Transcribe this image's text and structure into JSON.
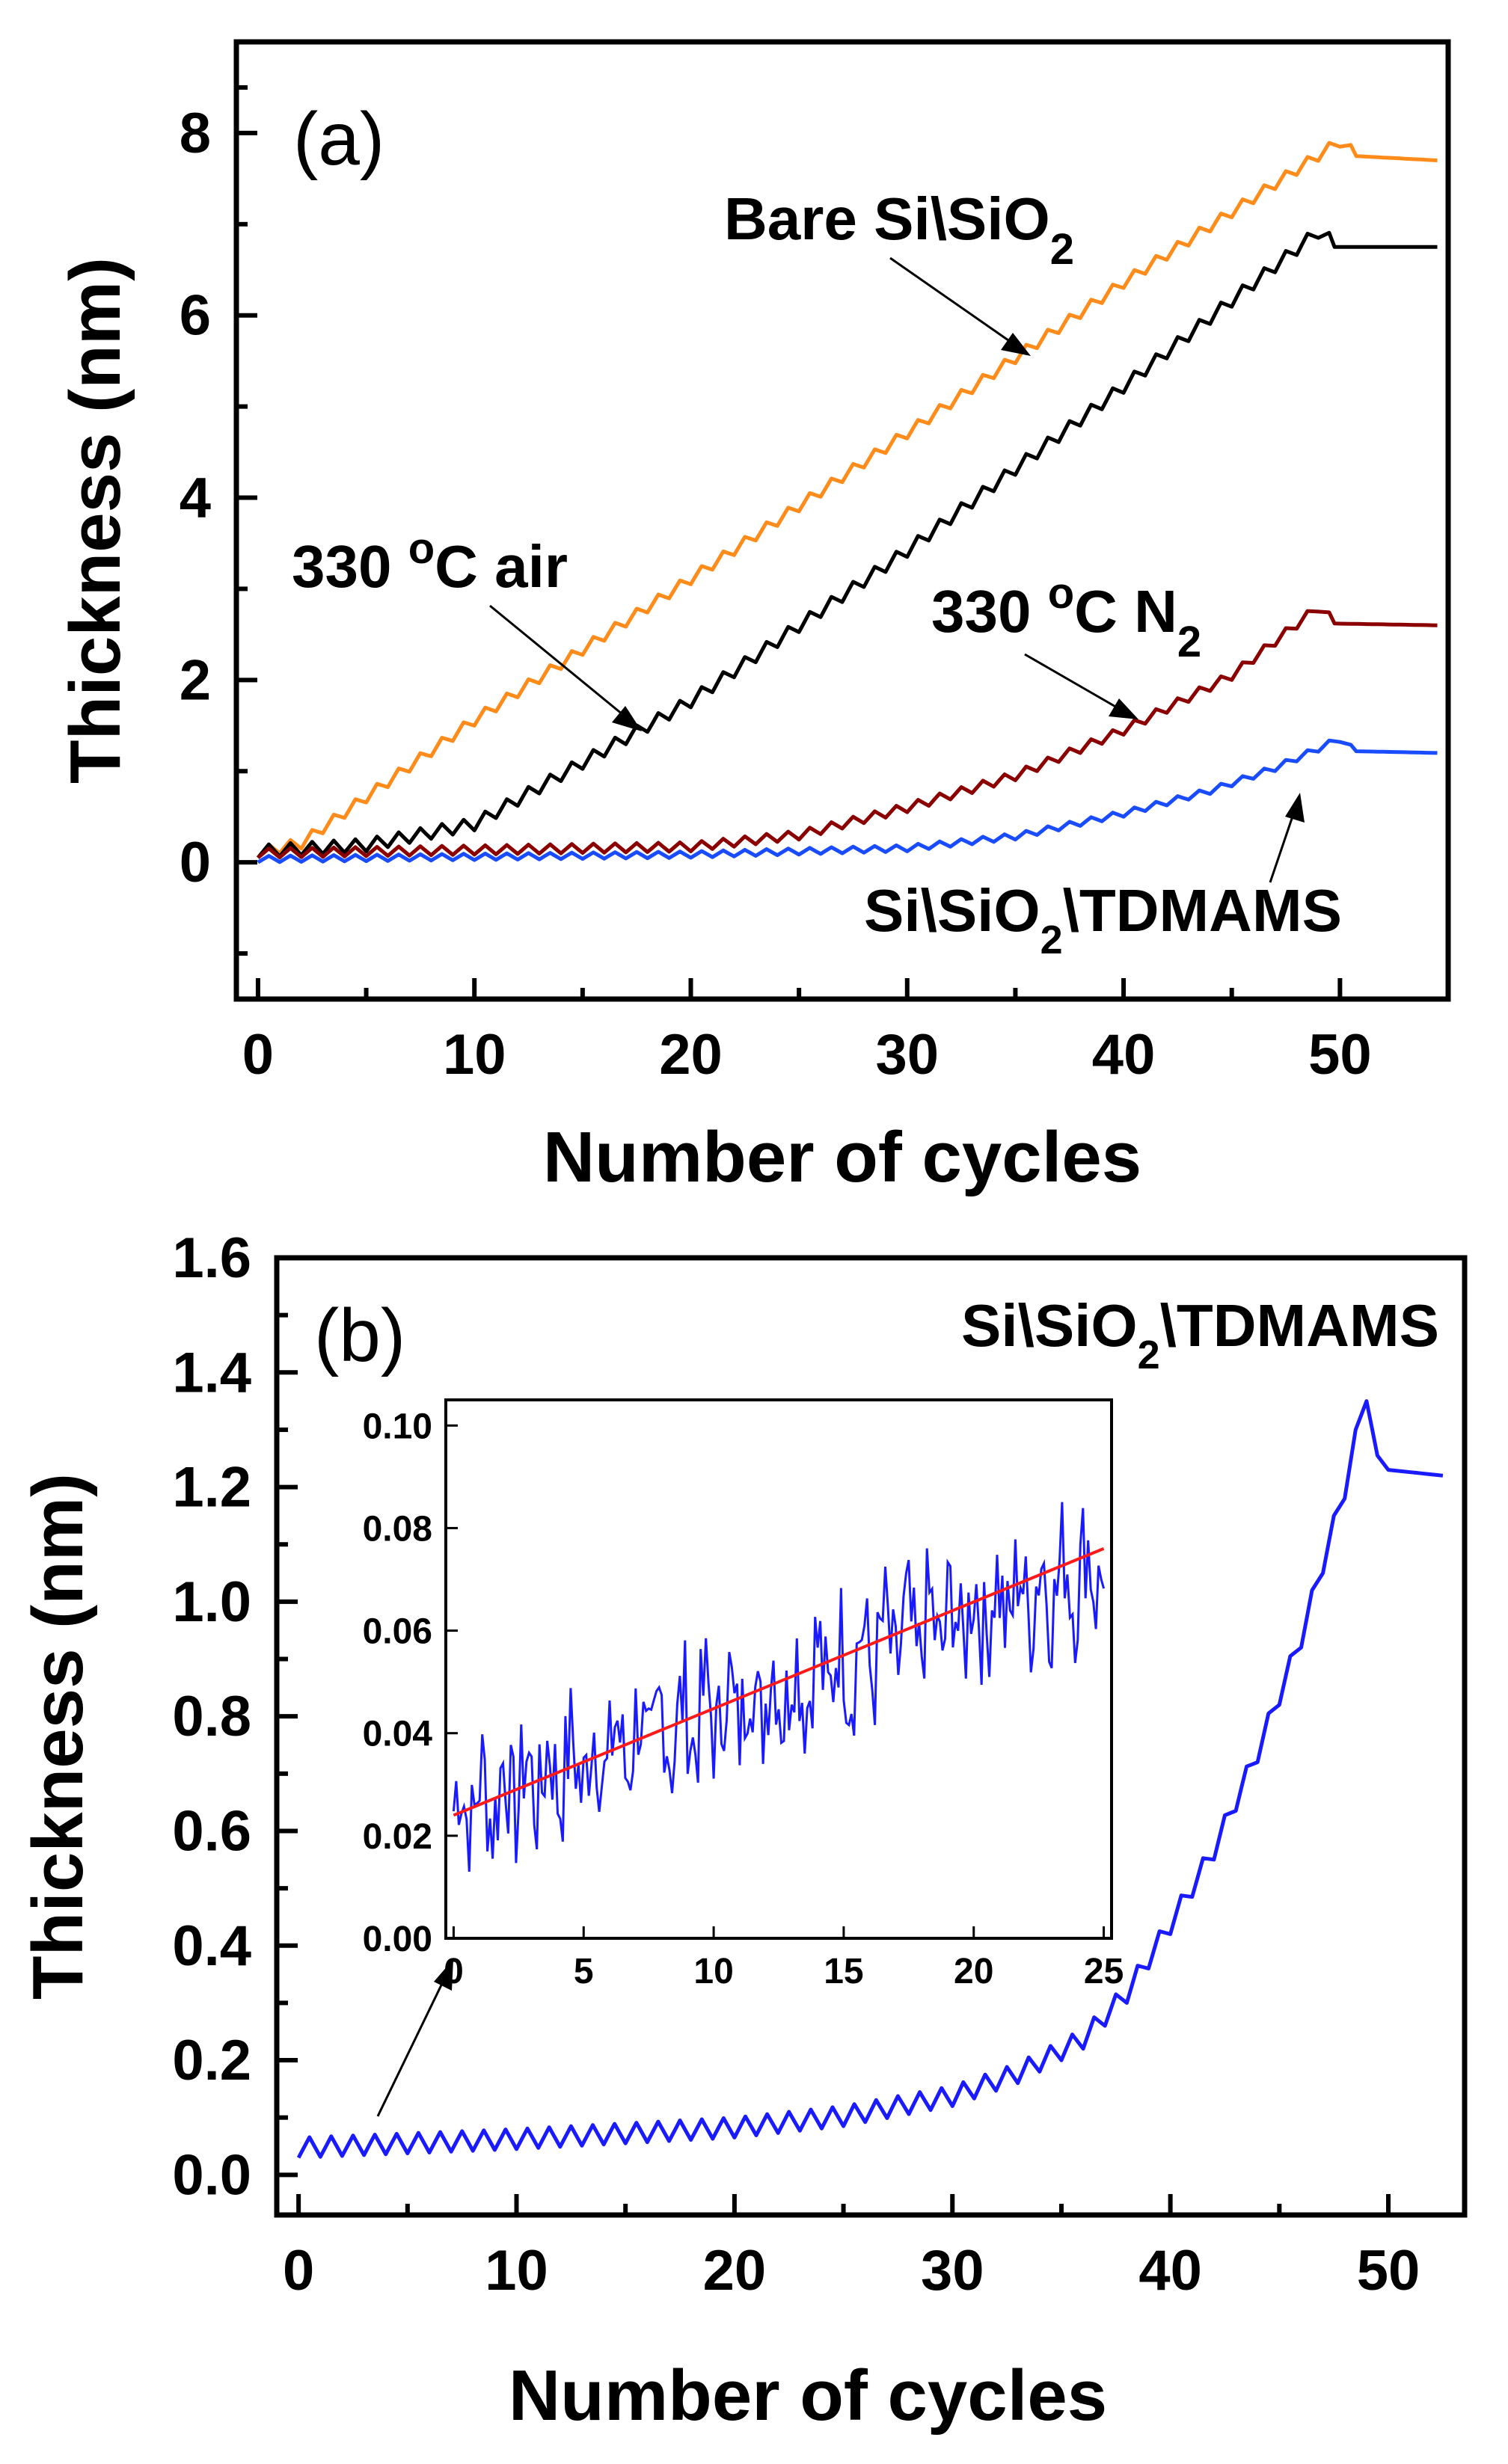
{
  "chart_data": [
    {
      "panel": "(a)",
      "type": "line",
      "xlabel": "Number of cycles",
      "ylabel": "Thickness (nm)",
      "xlim": [
        -1,
        55
      ],
      "ylim": [
        -1.5,
        9
      ],
      "xticks": [
        0,
        10,
        20,
        30,
        40,
        50
      ],
      "yticks": [
        0,
        2,
        4,
        6,
        8
      ],
      "series": [
        {
          "name": "Bare Si\\SiO2",
          "color": "#ff8c1a",
          "x": [
            0,
            2,
            10,
            20,
            30,
            40,
            50,
            50.5,
            54.5
          ],
          "y": [
            0.05,
            0.15,
            1.5,
            3.05,
            4.65,
            6.3,
            7.85,
            7.75,
            7.7
          ]
        },
        {
          "name": "330 °C air",
          "color": "#000000",
          "x": [
            0,
            5,
            10,
            20,
            30,
            40,
            49,
            49.6,
            54.5
          ],
          "y": [
            0.05,
            0.12,
            0.35,
            1.7,
            3.35,
            5.15,
            6.85,
            6.75,
            6.75
          ]
        },
        {
          "name": "330 °C N2",
          "color": "#8b0000",
          "x": [
            0,
            20,
            25,
            30,
            35,
            40,
            45,
            49,
            49.6,
            54.5
          ],
          "y": [
            0.05,
            0.12,
            0.25,
            0.55,
            0.9,
            1.4,
            2.0,
            2.75,
            2.62,
            2.6
          ]
        },
        {
          "name": "Si\\SiO2\\TDMAMS",
          "color": "#1a4cff",
          "x": [
            0,
            20,
            30,
            35,
            40,
            44,
            47,
            50,
            50.5,
            54.5
          ],
          "y": [
            0.0,
            0.05,
            0.12,
            0.25,
            0.5,
            0.75,
            1.0,
            1.32,
            1.22,
            1.2
          ]
        }
      ],
      "annotations": [
        {
          "text": "Bare Si\\SiO",
          "sub": "2"
        },
        {
          "text": "330 ",
          "sup": "o",
          "rest": "C air"
        },
        {
          "text": "330 ",
          "sup": "o",
          "rest": "C N",
          "sub": "2"
        },
        {
          "text": "Si\\SiO",
          "sub": "2",
          "rest": "\\TDMAMS"
        }
      ]
    },
    {
      "panel": "(b)",
      "type": "line",
      "xlabel": "Number of cycles",
      "ylabel": "Thickness (nm)",
      "xlim": [
        -1,
        53.5
      ],
      "ylim": [
        -0.07,
        1.6
      ],
      "xticks": [
        0,
        10,
        20,
        30,
        40,
        50
      ],
      "yticks": [
        "0.0",
        "0.2",
        "0.4",
        "0.6",
        "0.8",
        "1.0",
        "1.2",
        "1.4",
        "1.6"
      ],
      "legend": {
        "text": "Si\\SiO",
        "sub": "2",
        "rest": "\\TDMAMS"
      },
      "series": [
        {
          "name": "Si\\SiO2\\TDMAMS",
          "color": "#1a1aff",
          "x": [
            0,
            10,
            20,
            25,
            30,
            33,
            36,
            38,
            40,
            42,
            44,
            46,
            48,
            49,
            49.5,
            50,
            52.5
          ],
          "y": [
            0.03,
            0.045,
            0.065,
            0.085,
            0.12,
            0.16,
            0.22,
            0.3,
            0.42,
            0.55,
            0.72,
            0.92,
            1.18,
            1.35,
            1.22,
            1.23,
            1.22
          ]
        }
      ],
      "inset": {
        "xlim": [
          -0.3,
          25.3
        ],
        "ylim": [
          0.0,
          0.105
        ],
        "xticks": [
          0,
          5,
          10,
          15,
          20,
          25
        ],
        "yticks": [
          "0.00",
          "0.02",
          "0.04",
          "0.06",
          "0.08",
          "0.10"
        ],
        "fit": {
          "color": "#ff1a1a",
          "x": [
            0,
            25
          ],
          "y": [
            0.024,
            0.076
          ]
        },
        "noisy_series": {
          "color": "#1a1aff",
          "trend_start": 0.025,
          "trend_end": 0.073,
          "noise_amplitude": 0.012
        }
      }
    }
  ]
}
